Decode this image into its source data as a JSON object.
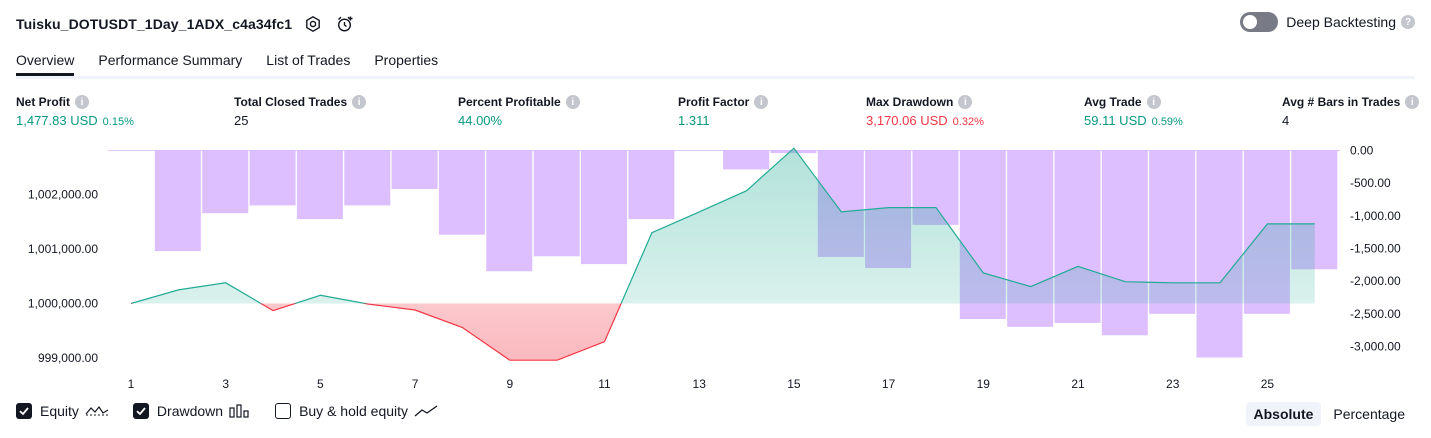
{
  "header": {
    "title": "Tuisku_DOTUSDT_1Day_1ADX_c4a34fc1",
    "deep_backtesting_label": "Deep Backtesting"
  },
  "tabs": [
    {
      "label": "Overview",
      "active": true
    },
    {
      "label": "Performance Summary",
      "active": false
    },
    {
      "label": "List of Trades",
      "active": false
    },
    {
      "label": "Properties",
      "active": false
    }
  ],
  "metrics": [
    {
      "label": "Net Profit",
      "value": "1,477.83 USD",
      "pct": "0.15%",
      "tone": "pos"
    },
    {
      "label": "Total Closed Trades",
      "value": "25",
      "pct": "",
      "tone": "neutral"
    },
    {
      "label": "Percent Profitable",
      "value": "44.00%",
      "pct": "",
      "tone": "pos"
    },
    {
      "label": "Profit Factor",
      "value": "1.311",
      "pct": "",
      "tone": "pos"
    },
    {
      "label": "Max Drawdown",
      "value": "3,170.06 USD",
      "pct": "0.32%",
      "tone": "neg"
    },
    {
      "label": "Avg Trade",
      "value": "59.11 USD",
      "pct": "0.59%",
      "tone": "pos"
    },
    {
      "label": "Avg # Bars in Trades",
      "value": "4",
      "pct": "",
      "tone": "neutral"
    }
  ],
  "legend": {
    "equity_label": "Equity",
    "drawdown_label": "Drawdown",
    "buy_hold_label": "Buy & hold equity",
    "equity_checked": true,
    "drawdown_checked": true,
    "buy_hold_checked": false
  },
  "mode": {
    "absolute_label": "Absolute",
    "percentage_label": "Percentage",
    "selected": "Absolute"
  },
  "colors": {
    "positive": "#089981",
    "negative": "#f23645",
    "drawdown_bar": "#d4aeff",
    "equity_line_above": "#22ab94",
    "equity_line_below": "#f23645"
  },
  "chart_data": {
    "type": "area",
    "x_ticks": [
      "1",
      "3",
      "5",
      "7",
      "9",
      "11",
      "13",
      "15",
      "17",
      "19",
      "21",
      "23",
      "25"
    ],
    "left_axis": {
      "ticks": [
        "999,000.00",
        "1,000,000.00",
        "1,001,000.00",
        "1,002,000.00"
      ],
      "tick_values": [
        999000,
        1000000,
        1001000,
        1002000
      ],
      "baseline": 1000000
    },
    "right_axis": {
      "ticks": [
        "0.00",
        "-500.00",
        "-1,000.00",
        "-1,500.00",
        "-2,000.00",
        "-2,500.00",
        "-3,000.00"
      ],
      "tick_values": [
        0,
        -500,
        -1000,
        -1500,
        -2000,
        -2500,
        -3000
      ]
    },
    "equity": {
      "x": [
        1,
        2,
        3,
        4,
        5,
        6,
        7,
        8,
        9,
        10,
        11,
        12,
        13,
        14,
        15,
        16,
        17,
        18,
        19,
        20,
        21,
        22,
        23,
        24,
        25,
        26
      ],
      "values": [
        1000000,
        1000250,
        1000380,
        999870,
        1000150,
        999990,
        999880,
        999560,
        998960,
        998960,
        999300,
        1001300,
        1001680,
        1002070,
        1002850,
        1001680,
        1001760,
        1001760,
        1000560,
        1000310,
        1000680,
        1000400,
        1000380,
        1000380,
        1001460,
        1001460
      ]
    },
    "drawdown": {
      "x": [
        1,
        2,
        3,
        4,
        5,
        6,
        7,
        8,
        9,
        10,
        11,
        12,
        13,
        14,
        15,
        16,
        17,
        18,
        19,
        20,
        21,
        22,
        23,
        24,
        25,
        26
      ],
      "values": [
        0,
        -1540,
        -960,
        -840,
        -1050,
        -840,
        -590,
        -1290,
        -1850,
        -1620,
        -1740,
        -1050,
        0,
        -290,
        -40,
        -1630,
        -1800,
        -1140,
        -2580,
        -2700,
        -2640,
        -2830,
        -2500,
        -3170,
        -2500,
        -1820
      ]
    }
  }
}
